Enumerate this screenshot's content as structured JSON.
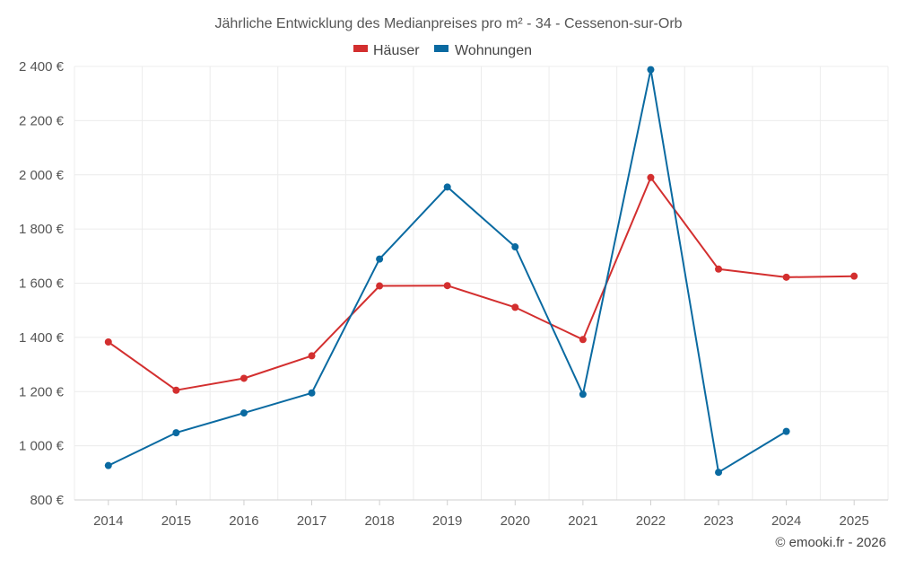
{
  "chart_data": {
    "type": "line",
    "title": "Jährliche Entwicklung des Medianpreises pro m² - 34 - Cessenon-sur-Orb",
    "categories": [
      "2014",
      "2015",
      "2016",
      "2017",
      "2018",
      "2019",
      "2020",
      "2021",
      "2022",
      "2023",
      "2024",
      "2025"
    ],
    "ylim": [
      800,
      2400
    ],
    "yticks": [
      800,
      1000,
      1200,
      1400,
      1600,
      1800,
      2000,
      2200,
      2400
    ],
    "ytick_labels": [
      "800 €",
      "1 000 €",
      "1 200 €",
      "1 400 €",
      "1 600 €",
      "1 800 €",
      "2 000 €",
      "2 200 €",
      "2 400 €"
    ],
    "grid": true,
    "legend_position": "top-center",
    "series": [
      {
        "name": "Häuser",
        "color": "#d32f2f",
        "values": [
          1383,
          1205,
          1249,
          1332,
          1590,
          1591,
          1511,
          1392,
          1990,
          1652,
          1622,
          1626
        ]
      },
      {
        "name": "Wohnungen",
        "color": "#0a6aa1",
        "values": [
          927,
          1048,
          1121,
          1195,
          1689,
          1955,
          1734,
          1190,
          2388,
          902,
          1053,
          null
        ]
      }
    ]
  },
  "credit": "© emooki.fr - 2026"
}
